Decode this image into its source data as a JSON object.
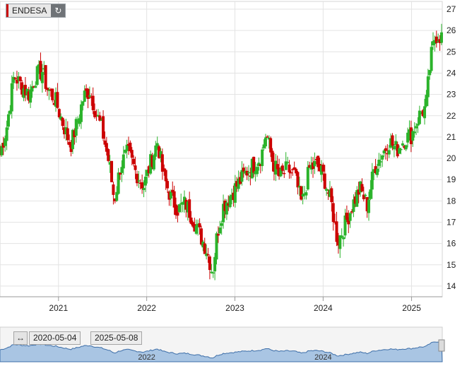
{
  "ticker": {
    "name": "ENDESA",
    "refresh_icon": "refresh-icon"
  },
  "navigator": {
    "start_date": "2020-05-04",
    "end_date": "2025-05-08",
    "range_icon": "range-arrows-icon"
  },
  "colors": {
    "up": "#2bb32b",
    "down": "#cc0000",
    "grid": "#e3e3e3",
    "navigator_fill": "#a9c5e3",
    "navigator_line": "#3d6ea8"
  },
  "chart_data": {
    "type": "candlestick",
    "interval": "weekly",
    "yticks": [
      14,
      15,
      16,
      17,
      18,
      19,
      20,
      21,
      22,
      23,
      24,
      25,
      26,
      27
    ],
    "ylim": [
      13.5,
      27.1
    ],
    "xlim": [
      "2020-05-04",
      "2025-05-08"
    ],
    "xticks": [
      {
        "label": "2021",
        "date": "2021-01-01"
      },
      {
        "label": "2022",
        "date": "2022-01-01"
      },
      {
        "label": "2023",
        "date": "2023-01-01"
      },
      {
        "label": "2024",
        "date": "2024-01-01"
      },
      {
        "label": "2025",
        "date": "2025-01-01"
      }
    ],
    "grid": true,
    "anchor_closes": [
      [
        "2020-05-04",
        20.2
      ],
      [
        "2020-06-01",
        21.5
      ],
      [
        "2020-07-01",
        23.9
      ],
      [
        "2020-08-01",
        23.4
      ],
      [
        "2020-09-01",
        23.0
      ],
      [
        "2020-10-01",
        23.9
      ],
      [
        "2020-10-26",
        24.1
      ],
      [
        "2020-11-15",
        23.3
      ],
      [
        "2020-12-20",
        22.7
      ],
      [
        "2021-01-20",
        21.6
      ],
      [
        "2021-02-20",
        20.6
      ],
      [
        "2021-03-20",
        21.7
      ],
      [
        "2021-04-15",
        22.9
      ],
      [
        "2021-05-10",
        23.2
      ],
      [
        "2021-06-01",
        22.3
      ],
      [
        "2021-07-01",
        21.3
      ],
      [
        "2021-08-01",
        19.6
      ],
      [
        "2021-08-20",
        18.0
      ],
      [
        "2021-09-15",
        19.7
      ],
      [
        "2021-10-15",
        20.3
      ],
      [
        "2021-11-15",
        19.4
      ],
      [
        "2021-12-20",
        18.7
      ],
      [
        "2022-01-20",
        19.9
      ],
      [
        "2022-02-15",
        20.8
      ],
      [
        "2022-03-10",
        19.2
      ],
      [
        "2022-04-10",
        18.2
      ],
      [
        "2022-05-10",
        17.6
      ],
      [
        "2022-06-10",
        17.9
      ],
      [
        "2022-07-10",
        17.2
      ],
      [
        "2022-08-10",
        16.4
      ],
      [
        "2022-09-10",
        15.6
      ],
      [
        "2022-09-30",
        14.6
      ],
      [
        "2022-10-20",
        16.5
      ],
      [
        "2022-11-15",
        17.8
      ],
      [
        "2022-12-15",
        18.3
      ],
      [
        "2023-01-20",
        18.9
      ],
      [
        "2023-02-20",
        19.4
      ],
      [
        "2023-03-20",
        19.7
      ],
      [
        "2023-04-20",
        20.1
      ],
      [
        "2023-05-10",
        21.2
      ],
      [
        "2023-06-05",
        19.9
      ],
      [
        "2023-07-05",
        19.1
      ],
      [
        "2023-08-05",
        19.5
      ],
      [
        "2023-09-05",
        19.2
      ],
      [
        "2023-10-05",
        17.8
      ],
      [
        "2023-11-05",
        19.5
      ],
      [
        "2023-12-05",
        19.7
      ],
      [
        "2024-01-05",
        19.1
      ],
      [
        "2024-02-05",
        17.8
      ],
      [
        "2024-03-01",
        16.1
      ],
      [
        "2024-04-01",
        16.9
      ],
      [
        "2024-05-01",
        17.8
      ],
      [
        "2024-06-01",
        18.6
      ],
      [
        "2024-07-01",
        17.8
      ],
      [
        "2024-08-01",
        19.6
      ],
      [
        "2024-09-01",
        20.2
      ],
      [
        "2024-10-01",
        20.8
      ],
      [
        "2024-11-01",
        20.4
      ],
      [
        "2024-12-01",
        20.9
      ],
      [
        "2025-01-01",
        21.1
      ],
      [
        "2025-02-01",
        22.0
      ],
      [
        "2025-03-01",
        22.4
      ],
      [
        "2025-03-20",
        24.6
      ],
      [
        "2025-04-10",
        25.8
      ],
      [
        "2025-05-08",
        25.7
      ]
    ]
  }
}
